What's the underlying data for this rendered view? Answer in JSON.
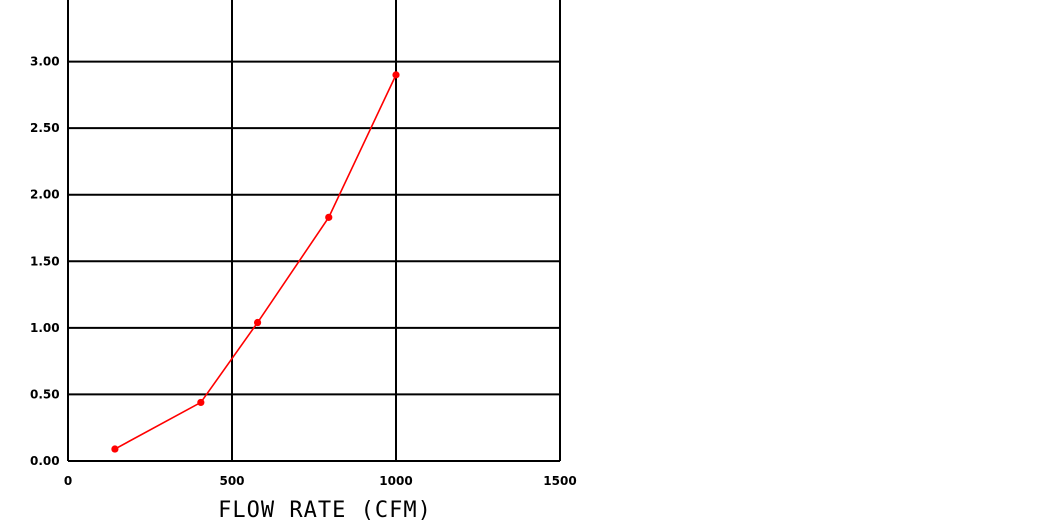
{
  "chart_data": {
    "type": "line",
    "title": "",
    "xlabel": "FLOW RATE (CFM)",
    "ylabel": "",
    "xlim": [
      0,
      1500
    ],
    "ylim": [
      0,
      3.5
    ],
    "x_ticks": [
      0,
      500,
      1000,
      1500
    ],
    "x_tick_labels": [
      "0",
      "500",
      "1000",
      "1500"
    ],
    "y_ticks": [
      0,
      0.5,
      1,
      1.5,
      2,
      2.5,
      3
    ],
    "y_tick_labels": [
      "0.00",
      "0.50",
      "1.00",
      "1.50",
      "2.00",
      "2.50",
      "3.00"
    ],
    "grid": true,
    "legend": "none",
    "series": [
      {
        "color": "#ff0000",
        "x": [
          143,
          405,
          578,
          795,
          1000
        ],
        "y": [
          0.09,
          0.44,
          1.04,
          1.83,
          2.9
        ]
      }
    ]
  }
}
